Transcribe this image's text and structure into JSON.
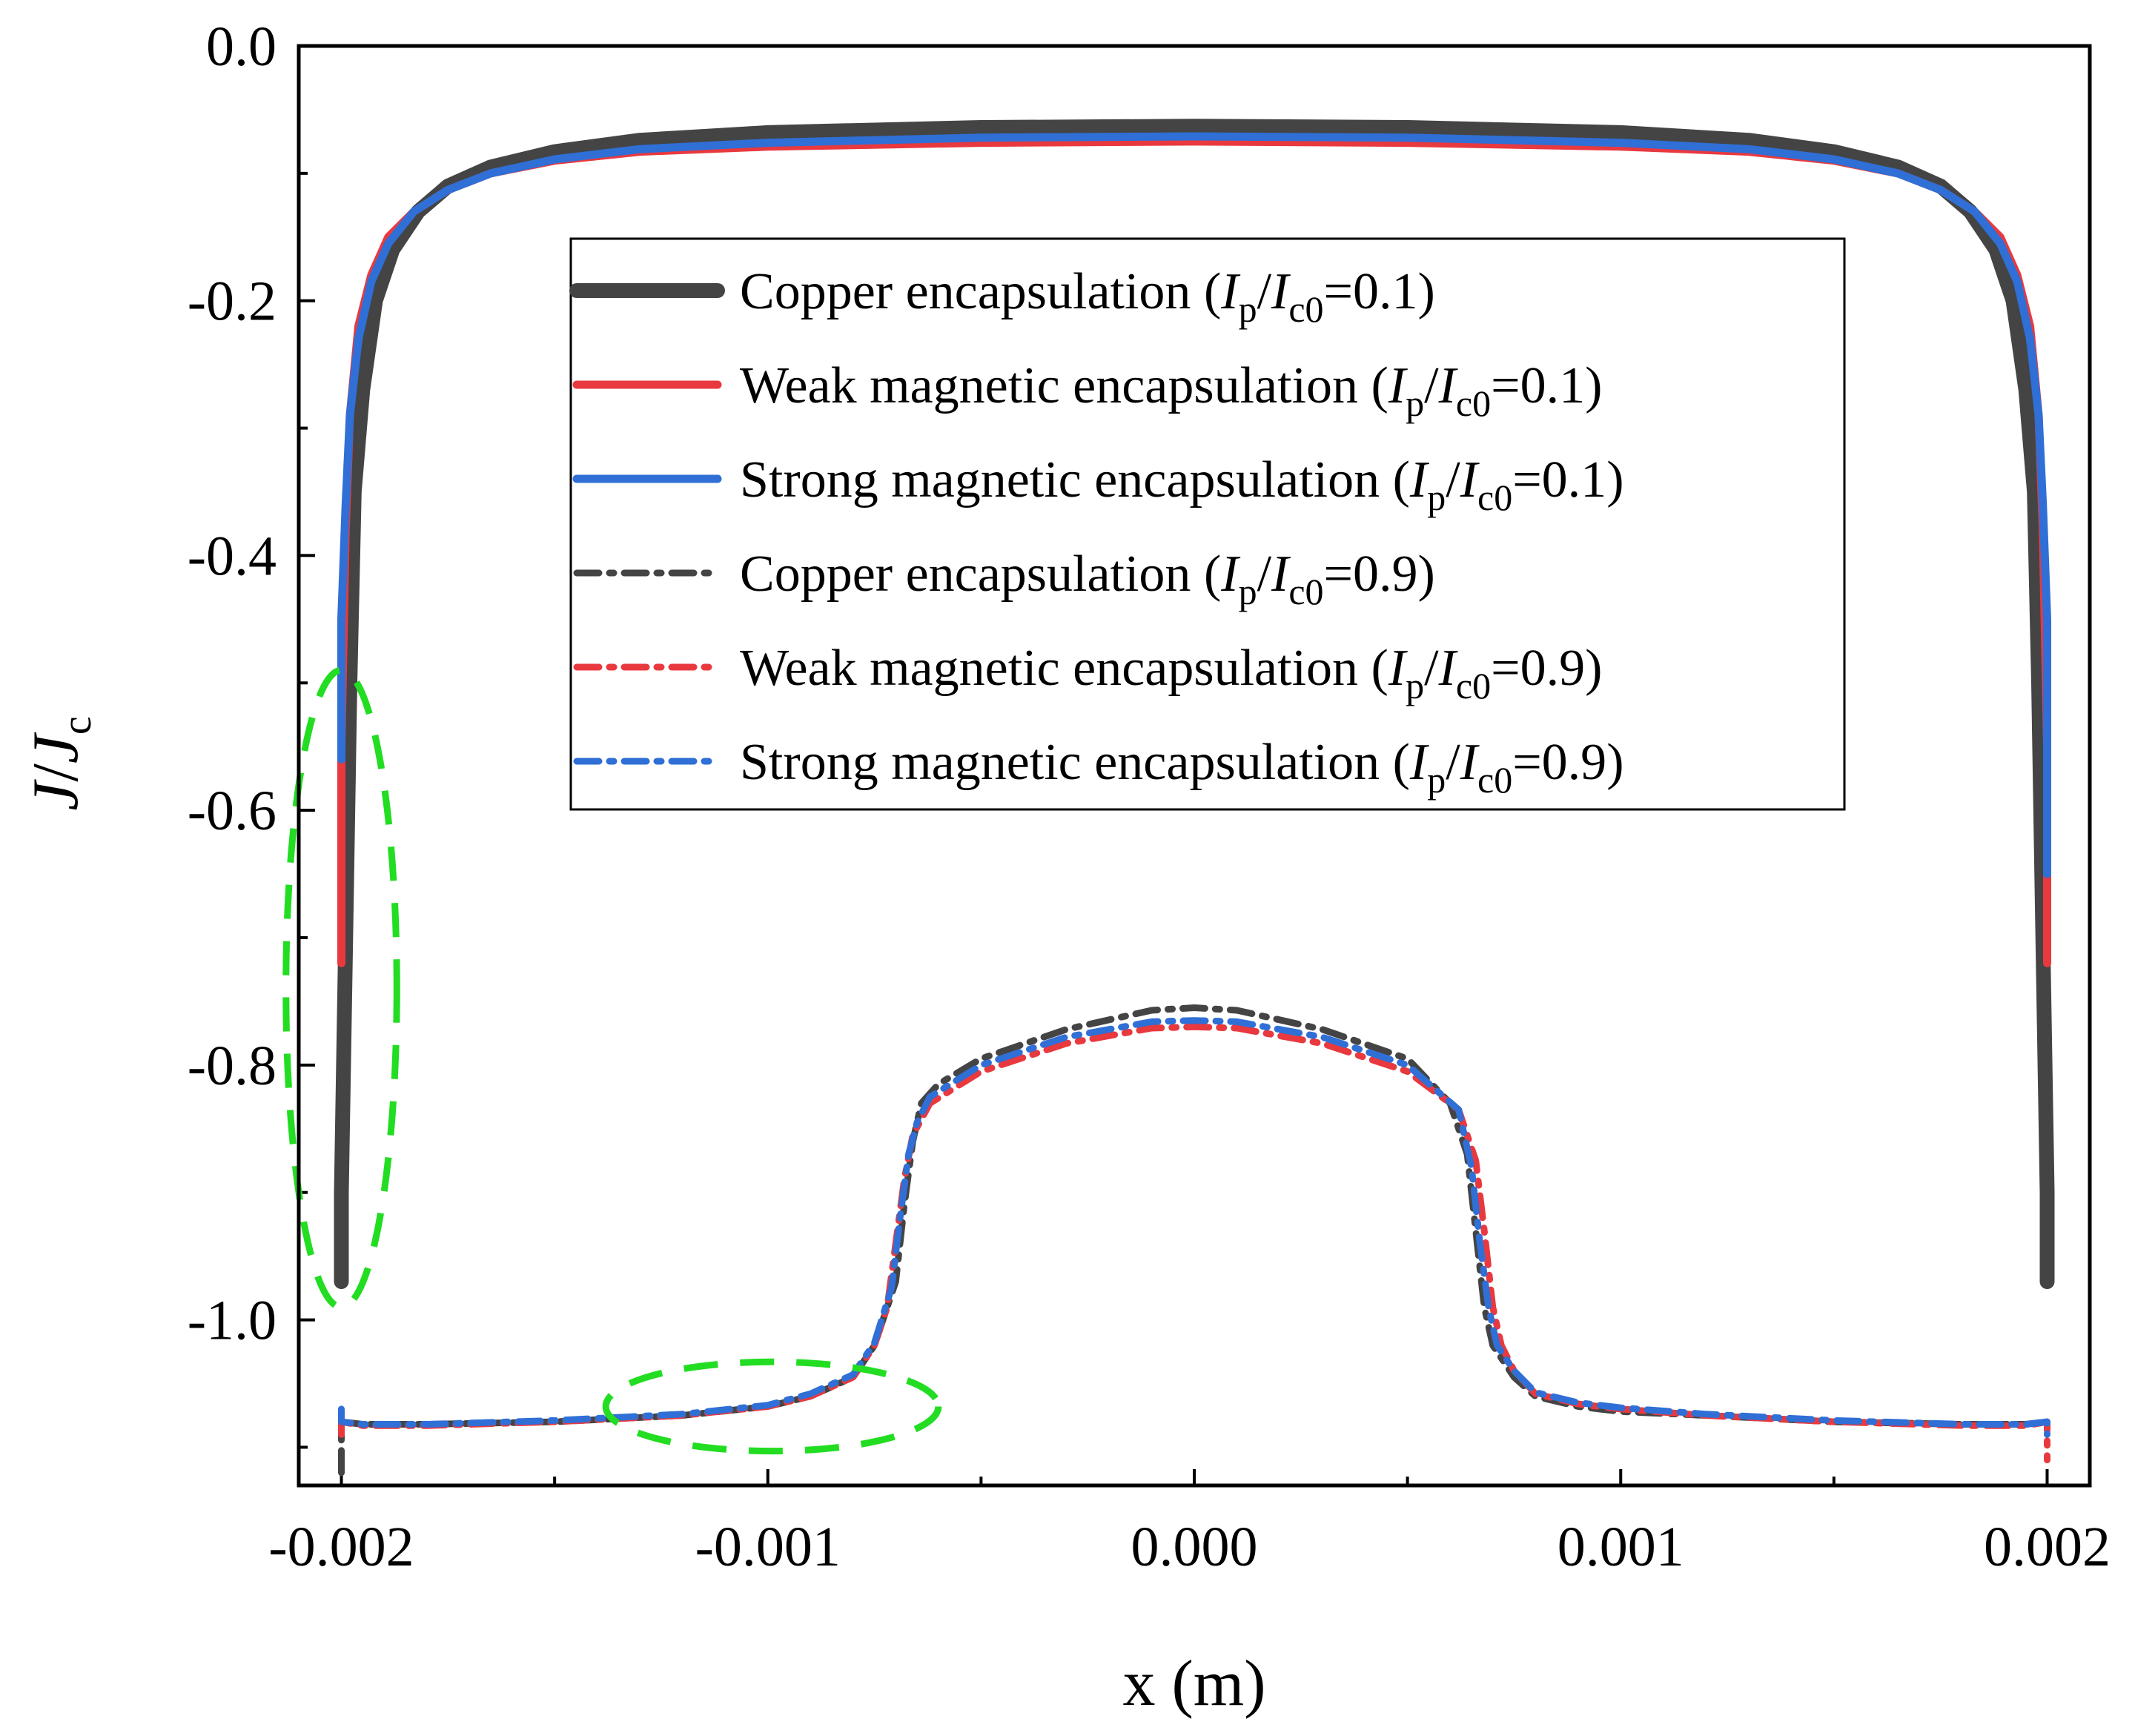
{
  "chart_data": {
    "type": "line",
    "xlabel": "x (m)",
    "ylabel_main": "J",
    "ylabel_slash": "/",
    "ylabel_sub_base": "J",
    "ylabel_sub": "c",
    "xlim": [
      -0.0021,
      0.0021
    ],
    "ylim": [
      -1.13,
      0.0
    ],
    "xticks": [
      {
        "value": -0.002,
        "label": "-0.002"
      },
      {
        "value": -0.001,
        "label": "-0.001"
      },
      {
        "value": 0.0,
        "label": "0.000"
      },
      {
        "value": 0.001,
        "label": "0.001"
      },
      {
        "value": 0.002,
        "label": "0.002"
      }
    ],
    "yticks": [
      {
        "value": 0.0,
        "label": "0.0"
      },
      {
        "value": -0.2,
        "label": "-0.2"
      },
      {
        "value": -0.4,
        "label": "-0.4"
      },
      {
        "value": -0.6,
        "label": "-0.6"
      },
      {
        "value": -0.8,
        "label": "-0.8"
      },
      {
        "value": -1.0,
        "label": "-1.0"
      }
    ],
    "xminor": [
      -0.0015,
      -0.0005,
      0.0005,
      0.0015
    ],
    "yminor": [
      -0.1,
      -0.3,
      -0.5,
      -0.7,
      -0.9,
      -1.1
    ],
    "legend_position": "upper-center",
    "series": [
      {
        "name": "Copper encapsulation",
        "ratio": "0.1",
        "color": "#444444",
        "style": "solid",
        "x": [
          -0.002,
          -0.002,
          -0.00199,
          -0.00198,
          -0.00197,
          -0.00195,
          -0.00192,
          -0.00188,
          -0.00182,
          -0.00175,
          -0.00165,
          -0.0015,
          -0.0013,
          -0.001,
          -0.0005,
          0.0,
          0.0005,
          0.001,
          0.0013,
          0.0015,
          0.00165,
          0.00175,
          0.00182,
          0.00188,
          0.00192,
          0.00195,
          0.00197,
          0.00198,
          0.00199,
          0.002,
          0.002
        ],
        "y": [
          -0.97,
          -0.9,
          -0.7,
          -0.5,
          -0.35,
          -0.27,
          -0.2,
          -0.16,
          -0.13,
          -0.11,
          -0.095,
          -0.083,
          -0.074,
          -0.068,
          -0.064,
          -0.063,
          -0.064,
          -0.068,
          -0.074,
          -0.083,
          -0.095,
          -0.11,
          -0.13,
          -0.16,
          -0.2,
          -0.27,
          -0.35,
          -0.5,
          -0.7,
          -0.9,
          -0.97
        ]
      },
      {
        "name": "Weak magnetic encapsulation",
        "ratio": "0.1",
        "color": "#e8393f",
        "style": "solid",
        "x": [
          -0.002,
          -0.002,
          -0.00199,
          -0.00198,
          -0.00196,
          -0.00193,
          -0.00189,
          -0.00183,
          -0.00175,
          -0.00165,
          -0.0015,
          -0.0013,
          -0.001,
          -0.0005,
          0.0,
          0.0005,
          0.001,
          0.0013,
          0.0015,
          0.00165,
          0.00175,
          0.00183,
          0.00189,
          0.00193,
          0.00196,
          0.00198,
          0.00199,
          0.002,
          0.002
        ],
        "y": [
          -0.72,
          -0.55,
          -0.38,
          -0.29,
          -0.22,
          -0.18,
          -0.15,
          -0.13,
          -0.113,
          -0.1,
          -0.09,
          -0.083,
          -0.079,
          -0.076,
          -0.075,
          -0.076,
          -0.079,
          -0.083,
          -0.09,
          -0.1,
          -0.113,
          -0.13,
          -0.15,
          -0.18,
          -0.22,
          -0.29,
          -0.38,
          -0.55,
          -0.72
        ]
      },
      {
        "name": "Strong magnetic encapsulation",
        "ratio": "0.1",
        "color": "#2f6fd6",
        "style": "solid",
        "x": [
          -0.002,
          -0.002,
          -0.00199,
          -0.00198,
          -0.00196,
          -0.00193,
          -0.00189,
          -0.00183,
          -0.00175,
          -0.00165,
          -0.0015,
          -0.0013,
          -0.001,
          -0.0005,
          0.0,
          0.0005,
          0.001,
          0.0013,
          0.0015,
          0.00165,
          0.00175,
          0.00183,
          0.00189,
          0.00193,
          0.00196,
          0.00198,
          0.00199,
          0.002,
          0.002
        ],
        "y": [
          -0.56,
          -0.45,
          -0.36,
          -0.29,
          -0.23,
          -0.185,
          -0.155,
          -0.13,
          -0.113,
          -0.1,
          -0.089,
          -0.081,
          -0.076,
          -0.072,
          -0.071,
          -0.072,
          -0.076,
          -0.081,
          -0.089,
          -0.1,
          -0.113,
          -0.13,
          -0.155,
          -0.185,
          -0.23,
          -0.29,
          -0.36,
          -0.45,
          -0.65
        ]
      },
      {
        "name": "Copper encapsulation",
        "ratio": "0.9",
        "color": "#444444",
        "style": "dashdot",
        "x": [
          -0.002,
          -0.002,
          -0.00195,
          -0.0018,
          -0.0015,
          -0.0012,
          -0.001,
          -0.0009,
          -0.0008,
          -0.00075,
          -0.0007,
          -0.00068,
          -0.00066,
          -0.00064,
          -0.0006,
          -0.0005,
          -0.0003,
          -0.0001,
          0.0,
          0.0001,
          0.0003,
          0.0005,
          0.0006,
          0.00064,
          0.00066,
          0.00068,
          0.0007,
          0.00075,
          0.0008,
          0.0009,
          0.001,
          0.0012,
          0.0015,
          0.0018,
          0.00195,
          0.002,
          0.002
        ],
        "y": [
          -1.12,
          -1.08,
          -1.082,
          -1.082,
          -1.08,
          -1.075,
          -1.068,
          -1.06,
          -1.045,
          -1.02,
          -0.97,
          -0.91,
          -0.86,
          -0.83,
          -0.815,
          -0.795,
          -0.772,
          -0.757,
          -0.755,
          -0.757,
          -0.772,
          -0.795,
          -0.83,
          -0.87,
          -0.93,
          -0.99,
          -1.02,
          -1.045,
          -1.06,
          -1.068,
          -1.072,
          -1.075,
          -1.08,
          -1.082,
          -1.082,
          -1.08,
          -1.09
        ]
      },
      {
        "name": "Weak magnetic encapsulation",
        "ratio": "0.9",
        "color": "#e8393f",
        "style": "dashdot",
        "x": [
          -0.002,
          -0.002,
          -0.00195,
          -0.0018,
          -0.0015,
          -0.0012,
          -0.001,
          -0.0009,
          -0.0008,
          -0.00075,
          -0.00072,
          -0.0007,
          -0.00068,
          -0.00066,
          -0.00062,
          -0.0005,
          -0.0003,
          -0.0001,
          0.0,
          0.0001,
          0.0003,
          0.0005,
          0.00062,
          0.00066,
          0.00068,
          0.0007,
          0.00072,
          0.00075,
          0.0008,
          0.0009,
          0.001,
          0.0012,
          0.0015,
          0.0018,
          0.00195,
          0.002,
          0.002
        ],
        "y": [
          -1.09,
          -1.08,
          -1.083,
          -1.083,
          -1.08,
          -1.075,
          -1.068,
          -1.06,
          -1.045,
          -1.02,
          -0.99,
          -0.94,
          -0.89,
          -0.855,
          -0.83,
          -0.805,
          -0.783,
          -0.771,
          -0.77,
          -0.771,
          -0.783,
          -0.805,
          -0.835,
          -0.875,
          -0.93,
          -0.99,
          -1.02,
          -1.04,
          -1.058,
          -1.066,
          -1.07,
          -1.075,
          -1.08,
          -1.083,
          -1.083,
          -1.08,
          -1.11
        ]
      },
      {
        "name": "Strong magnetic encapsulation",
        "ratio": "0.9",
        "color": "#2f6fd6",
        "style": "dashdot",
        "x": [
          -0.002,
          -0.002,
          -0.00195,
          -0.0018,
          -0.0015,
          -0.0012,
          -0.001,
          -0.0009,
          -0.0008,
          -0.00075,
          -0.00071,
          -0.00069,
          -0.00067,
          -0.00065,
          -0.00062,
          -0.0005,
          -0.0003,
          -0.0001,
          0.0,
          0.0001,
          0.0003,
          0.0005,
          0.00062,
          0.00065,
          0.00067,
          0.00069,
          0.00071,
          0.00075,
          0.0008,
          0.0009,
          0.001,
          0.0012,
          0.0015,
          0.0018,
          0.00195,
          0.002,
          0.002
        ],
        "y": [
          -1.07,
          -1.08,
          -1.082,
          -1.082,
          -1.079,
          -1.074,
          -1.067,
          -1.058,
          -1.043,
          -1.018,
          -0.975,
          -0.92,
          -0.87,
          -0.845,
          -0.825,
          -0.8,
          -0.778,
          -0.766,
          -0.765,
          -0.766,
          -0.778,
          -0.8,
          -0.835,
          -0.88,
          -0.94,
          -0.99,
          -1.02,
          -1.04,
          -1.057,
          -1.065,
          -1.069,
          -1.074,
          -1.079,
          -1.082,
          -1.082,
          -1.08,
          -1.09
        ]
      }
    ],
    "legend_prefix": "(",
    "legend_ip": "I",
    "legend_ip_sub": "p",
    "legend_slash": "/",
    "legend_ic": "I",
    "legend_ic_sub": "c0",
    "legend_eq": "=",
    "legend_suffix": ")",
    "highlights": [
      {
        "name": "left-edge-highlight",
        "color": "#22dd22",
        "cx": -0.002,
        "cy": -0.74,
        "rx": 0.00013,
        "ry": 0.25
      },
      {
        "name": "flat-region-highlight",
        "color": "#22dd22",
        "cx": -0.00099,
        "cy": -1.068,
        "rx": 0.00039,
        "ry": 0.035
      }
    ]
  }
}
